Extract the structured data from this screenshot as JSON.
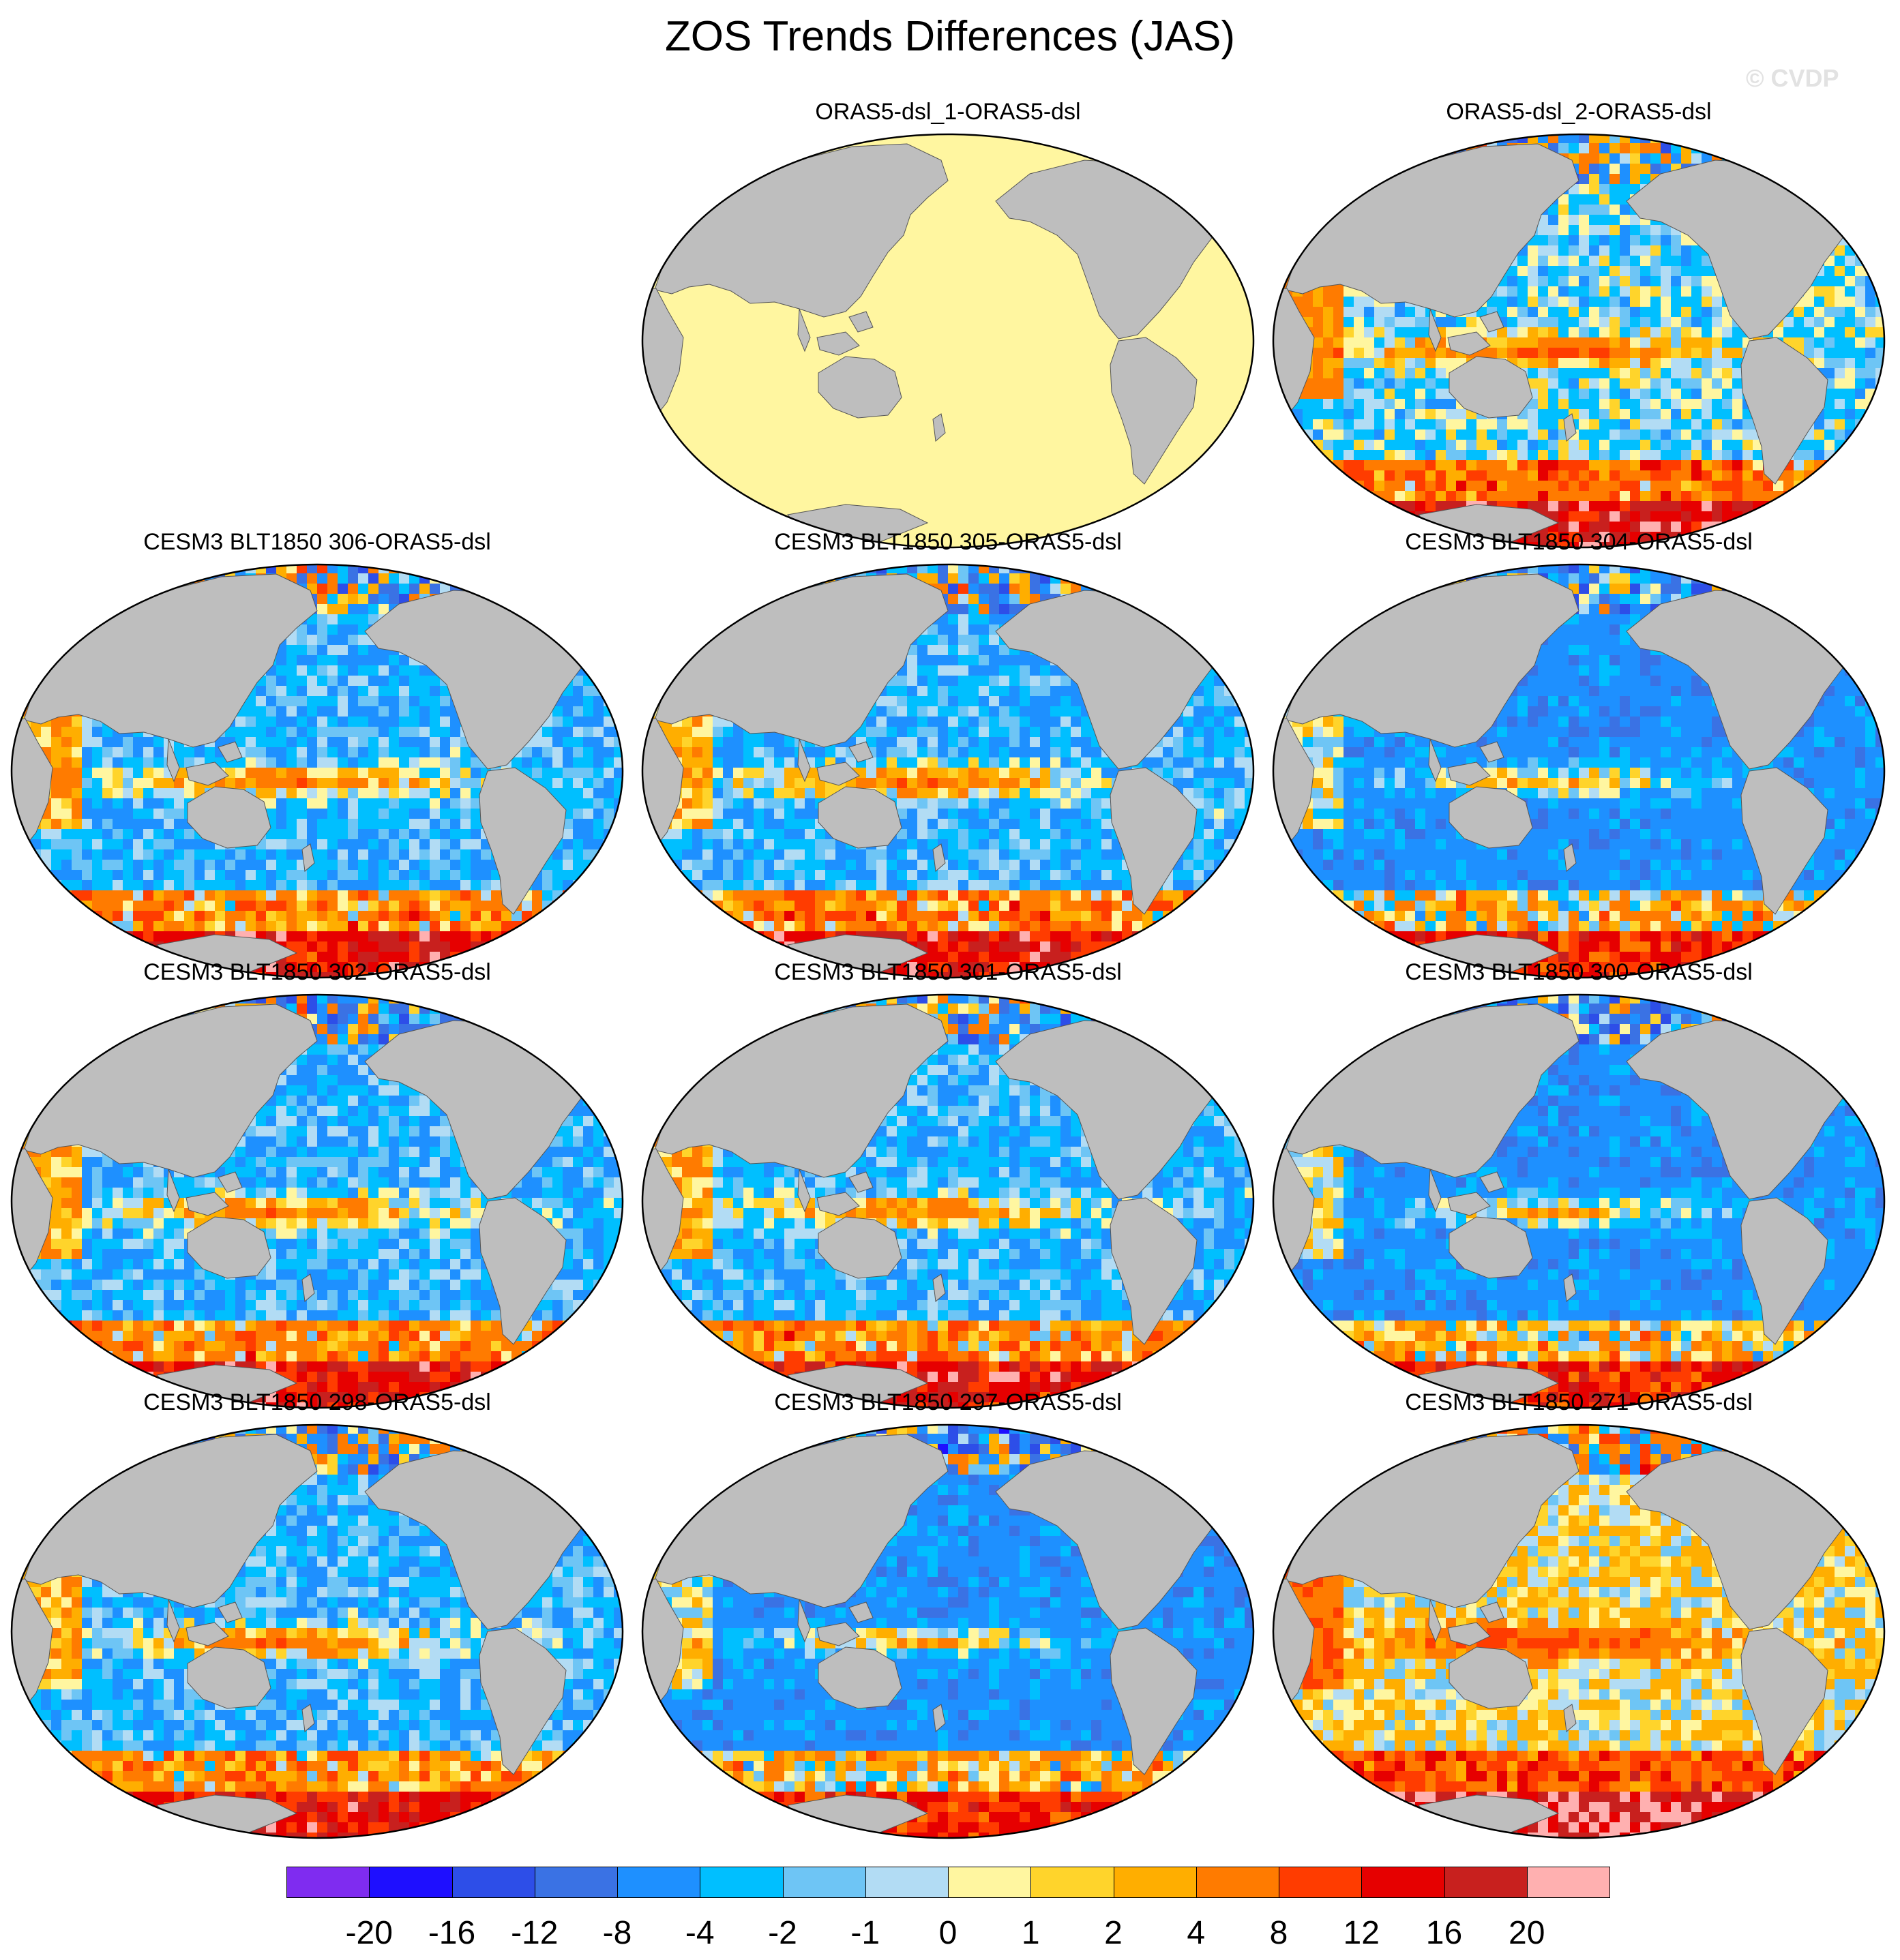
{
  "title": "ZOS Trends Differences (JAS)",
  "watermark": "© CVDP",
  "panels": [
    {
      "title": "ORAS5-dsl_1-ORAS5-dsl",
      "pattern": "uniform",
      "seed": 1
    },
    {
      "title": "ORAS5-dsl_2-ORAS5-dsl",
      "pattern": "mixed",
      "seed": 2
    },
    {
      "title": "CESM3 BLT1850 306-ORAS5-dsl",
      "pattern": "model",
      "seed": 3
    },
    {
      "title": "CESM3 BLT1850 305-ORAS5-dsl",
      "pattern": "model",
      "seed": 4
    },
    {
      "title": "CESM3 BLT1850 304-ORAS5-dsl",
      "pattern": "model-cool",
      "seed": 5
    },
    {
      "title": "CESM3 BLT1850 302-ORAS5-dsl",
      "pattern": "model",
      "seed": 6
    },
    {
      "title": "CESM3 BLT1850 301-ORAS5-dsl",
      "pattern": "model",
      "seed": 7
    },
    {
      "title": "CESM3 BLT1850 300-ORAS5-dsl",
      "pattern": "model-cool",
      "seed": 8
    },
    {
      "title": "CESM3 BLT1850 298-ORAS5-dsl",
      "pattern": "model",
      "seed": 9
    },
    {
      "title": "CESM3 BLT1850 297-ORAS5-dsl",
      "pattern": "model-cool",
      "seed": 10
    },
    {
      "title": "CESM3 BLT1850 271-ORAS5-dsl",
      "pattern": "model-warm",
      "seed": 11
    }
  ],
  "colorbar": {
    "colors": [
      "#7f2cf0",
      "#1e0fff",
      "#2d4ee8",
      "#3a72e4",
      "#1e90ff",
      "#00bfff",
      "#6ec5f5",
      "#b2dcf4",
      "#fff6a0",
      "#ffd42b",
      "#ffae00",
      "#ff7b00",
      "#ff3c00",
      "#e60000",
      "#c8201e",
      "#ffb0b0"
    ],
    "labels": [
      "-20",
      "-16",
      "-12",
      "-8",
      "-4",
      "-2",
      "-1",
      "0",
      "1",
      "2",
      "4",
      "8",
      "12",
      "16",
      "20"
    ]
  },
  "colors": {
    "land": "#bebebe",
    "uniform_fill": "#fff6a0",
    "outline": "#000000"
  }
}
